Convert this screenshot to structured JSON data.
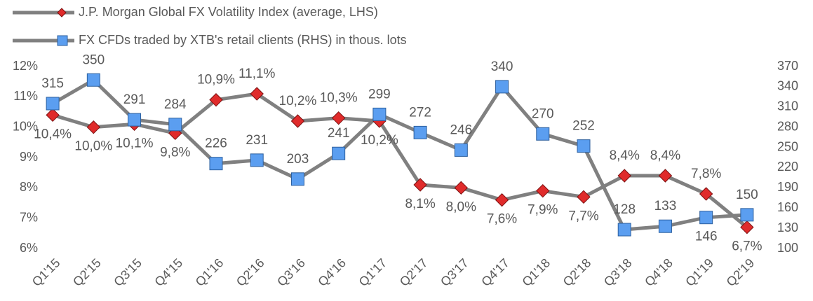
{
  "chart_data": {
    "type": "line",
    "categories": [
      "Q1'15",
      "Q2'15",
      "Q3'15",
      "Q4'15",
      "Q1'16",
      "Q2'16",
      "Q3'16",
      "Q4'16",
      "Q1'17",
      "Q2'17",
      "Q3'17",
      "Q4'17",
      "Q1'18",
      "Q2'18",
      "Q3'18",
      "Q4'18",
      "Q1'19",
      "Q2'19"
    ],
    "series": [
      {
        "name": "J.P. Morgan Global FX Volatility Index (average, LHS)",
        "color": "#e02b2b",
        "marker": "diamond",
        "values": [
          10.4,
          10.0,
          10.1,
          9.8,
          10.9,
          11.1,
          10.2,
          10.3,
          10.2,
          8.1,
          8.0,
          7.6,
          7.9,
          7.7,
          8.4,
          8.4,
          7.8,
          6.7
        ],
        "value_labels": [
          "10,4%",
          "10,0%",
          "10,1%",
          "9,8%",
          "10,9%",
          "11,1%",
          "10,2%",
          "10,3%",
          "10,2%",
          "8,1%",
          "8,0%",
          "7,6%",
          "7,9%",
          "7,7%",
          "8,4%",
          "8,4%",
          "7,8%",
          "6,7%"
        ]
      },
      {
        "name": "FX CFDs traded by XTB's retail clients (RHS) in thous. lots",
        "color": "#5b9ef0",
        "marker": "square",
        "axis": "y2",
        "values": [
          315,
          350,
          291,
          284,
          226,
          231,
          203,
          241,
          299,
          272,
          246,
          340,
          270,
          252,
          128,
          133,
          146,
          150
        ]
      }
    ],
    "line_color": "#808080",
    "ylim": [
      6,
      12
    ],
    "yticks": [
      {
        "value": 6,
        "label": "6%"
      },
      {
        "value": 7,
        "label": "7%"
      },
      {
        "value": 8,
        "label": "8%"
      },
      {
        "value": 9,
        "label": "9%"
      },
      {
        "value": 10,
        "label": "10%"
      },
      {
        "value": 11,
        "label": "11%"
      },
      {
        "value": 12,
        "label": "12%"
      }
    ],
    "y2lim": [
      100,
      370
    ],
    "y2ticks": [
      100,
      130,
      160,
      190,
      220,
      250,
      280,
      310,
      340,
      370
    ],
    "grid": false
  }
}
